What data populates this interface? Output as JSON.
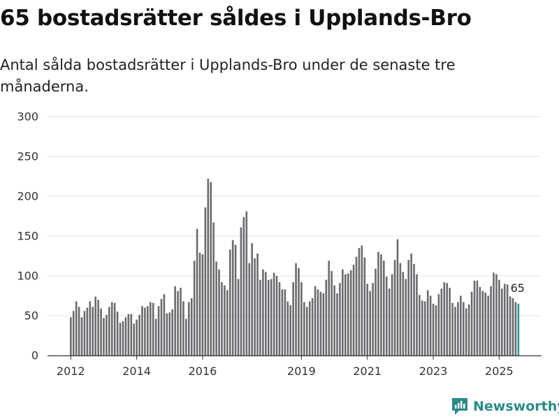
{
  "header": {
    "title": "65 bostadsrätter såldes i Upplands-Bro",
    "subtitle": "Antal sålda bostadsrätter i Upplands-Bro under de senaste tre månaderna."
  },
  "brand": {
    "name": "Newsworthy",
    "icon": "newsworthy-logo-icon",
    "color": "#2a8a89"
  },
  "chart_data": {
    "type": "bar",
    "ylim": [
      0,
      300
    ],
    "yticks": [
      "0",
      "50",
      "100",
      "150",
      "200",
      "250",
      "300"
    ],
    "x_start": "2012-01",
    "xticks": [
      {
        "label": "2012",
        "month": "2012-01"
      },
      {
        "label": "2014",
        "month": "2014-01"
      },
      {
        "label": "2016",
        "month": "2016-01"
      },
      {
        "label": "2019",
        "month": "2019-01"
      },
      {
        "label": "2021",
        "month": "2021-01"
      },
      {
        "label": "2023",
        "month": "2023-01"
      },
      {
        "label": "2025",
        "month": "2025-01"
      }
    ],
    "values": [
      48,
      56,
      68,
      61,
      48,
      56,
      60,
      68,
      61,
      74,
      70,
      59,
      47,
      51,
      61,
      67,
      66,
      55,
      41,
      43,
      48,
      52,
      52,
      40,
      45,
      51,
      62,
      60,
      62,
      67,
      66,
      46,
      62,
      71,
      77,
      53,
      54,
      58,
      87,
      81,
      85,
      68,
      46,
      67,
      72,
      119,
      159,
      129,
      127,
      186,
      222,
      218,
      167,
      118,
      108,
      92,
      88,
      82,
      133,
      145,
      139,
      96,
      161,
      174,
      181,
      116,
      141,
      122,
      128,
      95,
      108,
      105,
      95,
      96,
      104,
      100,
      92,
      83,
      83,
      68,
      63,
      92,
      116,
      110,
      92,
      67,
      61,
      68,
      72,
      87,
      83,
      80,
      78,
      95,
      119,
      106,
      88,
      78,
      91,
      108,
      102,
      103,
      107,
      114,
      124,
      135,
      138,
      123,
      90,
      81,
      91,
      109,
      130,
      127,
      119,
      99,
      84,
      102,
      120,
      146,
      116,
      105,
      96,
      120,
      128,
      115,
      102,
      76,
      69,
      68,
      82,
      75,
      65,
      63,
      77,
      84,
      92,
      91,
      85,
      66,
      61,
      67,
      75,
      67,
      59,
      64,
      80,
      94,
      94,
      86,
      81,
      79,
      75,
      87,
      104,
      102,
      95,
      84,
      90,
      89,
      74,
      72,
      67,
      65
    ],
    "last_value_label": "65",
    "bar_color": "#6b6a6e",
    "highlight_color": "#2a9d8f"
  }
}
